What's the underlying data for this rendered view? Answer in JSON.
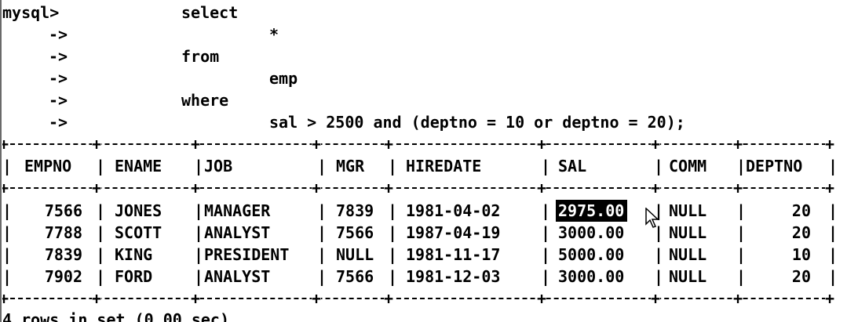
{
  "query": {
    "prompt": "mysql>",
    "continuation": "->",
    "lines": [
      {
        "indent": "select",
        "col2": ""
      },
      {
        "indent": "",
        "col2": "*"
      },
      {
        "indent": "from",
        "col2": ""
      },
      {
        "indent": "",
        "col2": "emp"
      },
      {
        "indent": "where",
        "col2": ""
      },
      {
        "indent": "",
        "col2": "sal > 2500 and (deptno = 10 or deptno = 20);"
      }
    ]
  },
  "table": {
    "columns": [
      "EMPNO",
      "ENAME",
      "JOB",
      "MGR",
      "HIREDATE",
      "SAL",
      "COMM",
      "DEPTNO"
    ],
    "rows": [
      [
        "7566",
        "JONES",
        "MANAGER",
        "7839",
        "1981-04-02",
        "2975.00",
        "NULL",
        "20"
      ],
      [
        "7788",
        "SCOTT",
        "ANALYST",
        "7566",
        "1987-04-19",
        "3000.00",
        "NULL",
        "20"
      ],
      [
        "7839",
        "KING",
        "PRESIDENT",
        "NULL",
        "1981-11-17",
        "5000.00",
        "NULL",
        "10"
      ],
      [
        "7902",
        "FORD",
        "ANALYST",
        "7566",
        "1981-12-03",
        "3000.00",
        "NULL",
        "20"
      ]
    ],
    "selected_cell": "2975.00"
  },
  "status": "4 rows in set (0.00 sec)",
  "colors": {
    "background": "#ffffff",
    "text": "#000000",
    "selection": "#000000"
  },
  "icons": {
    "cursor": "mouse-pointer-icon"
  }
}
